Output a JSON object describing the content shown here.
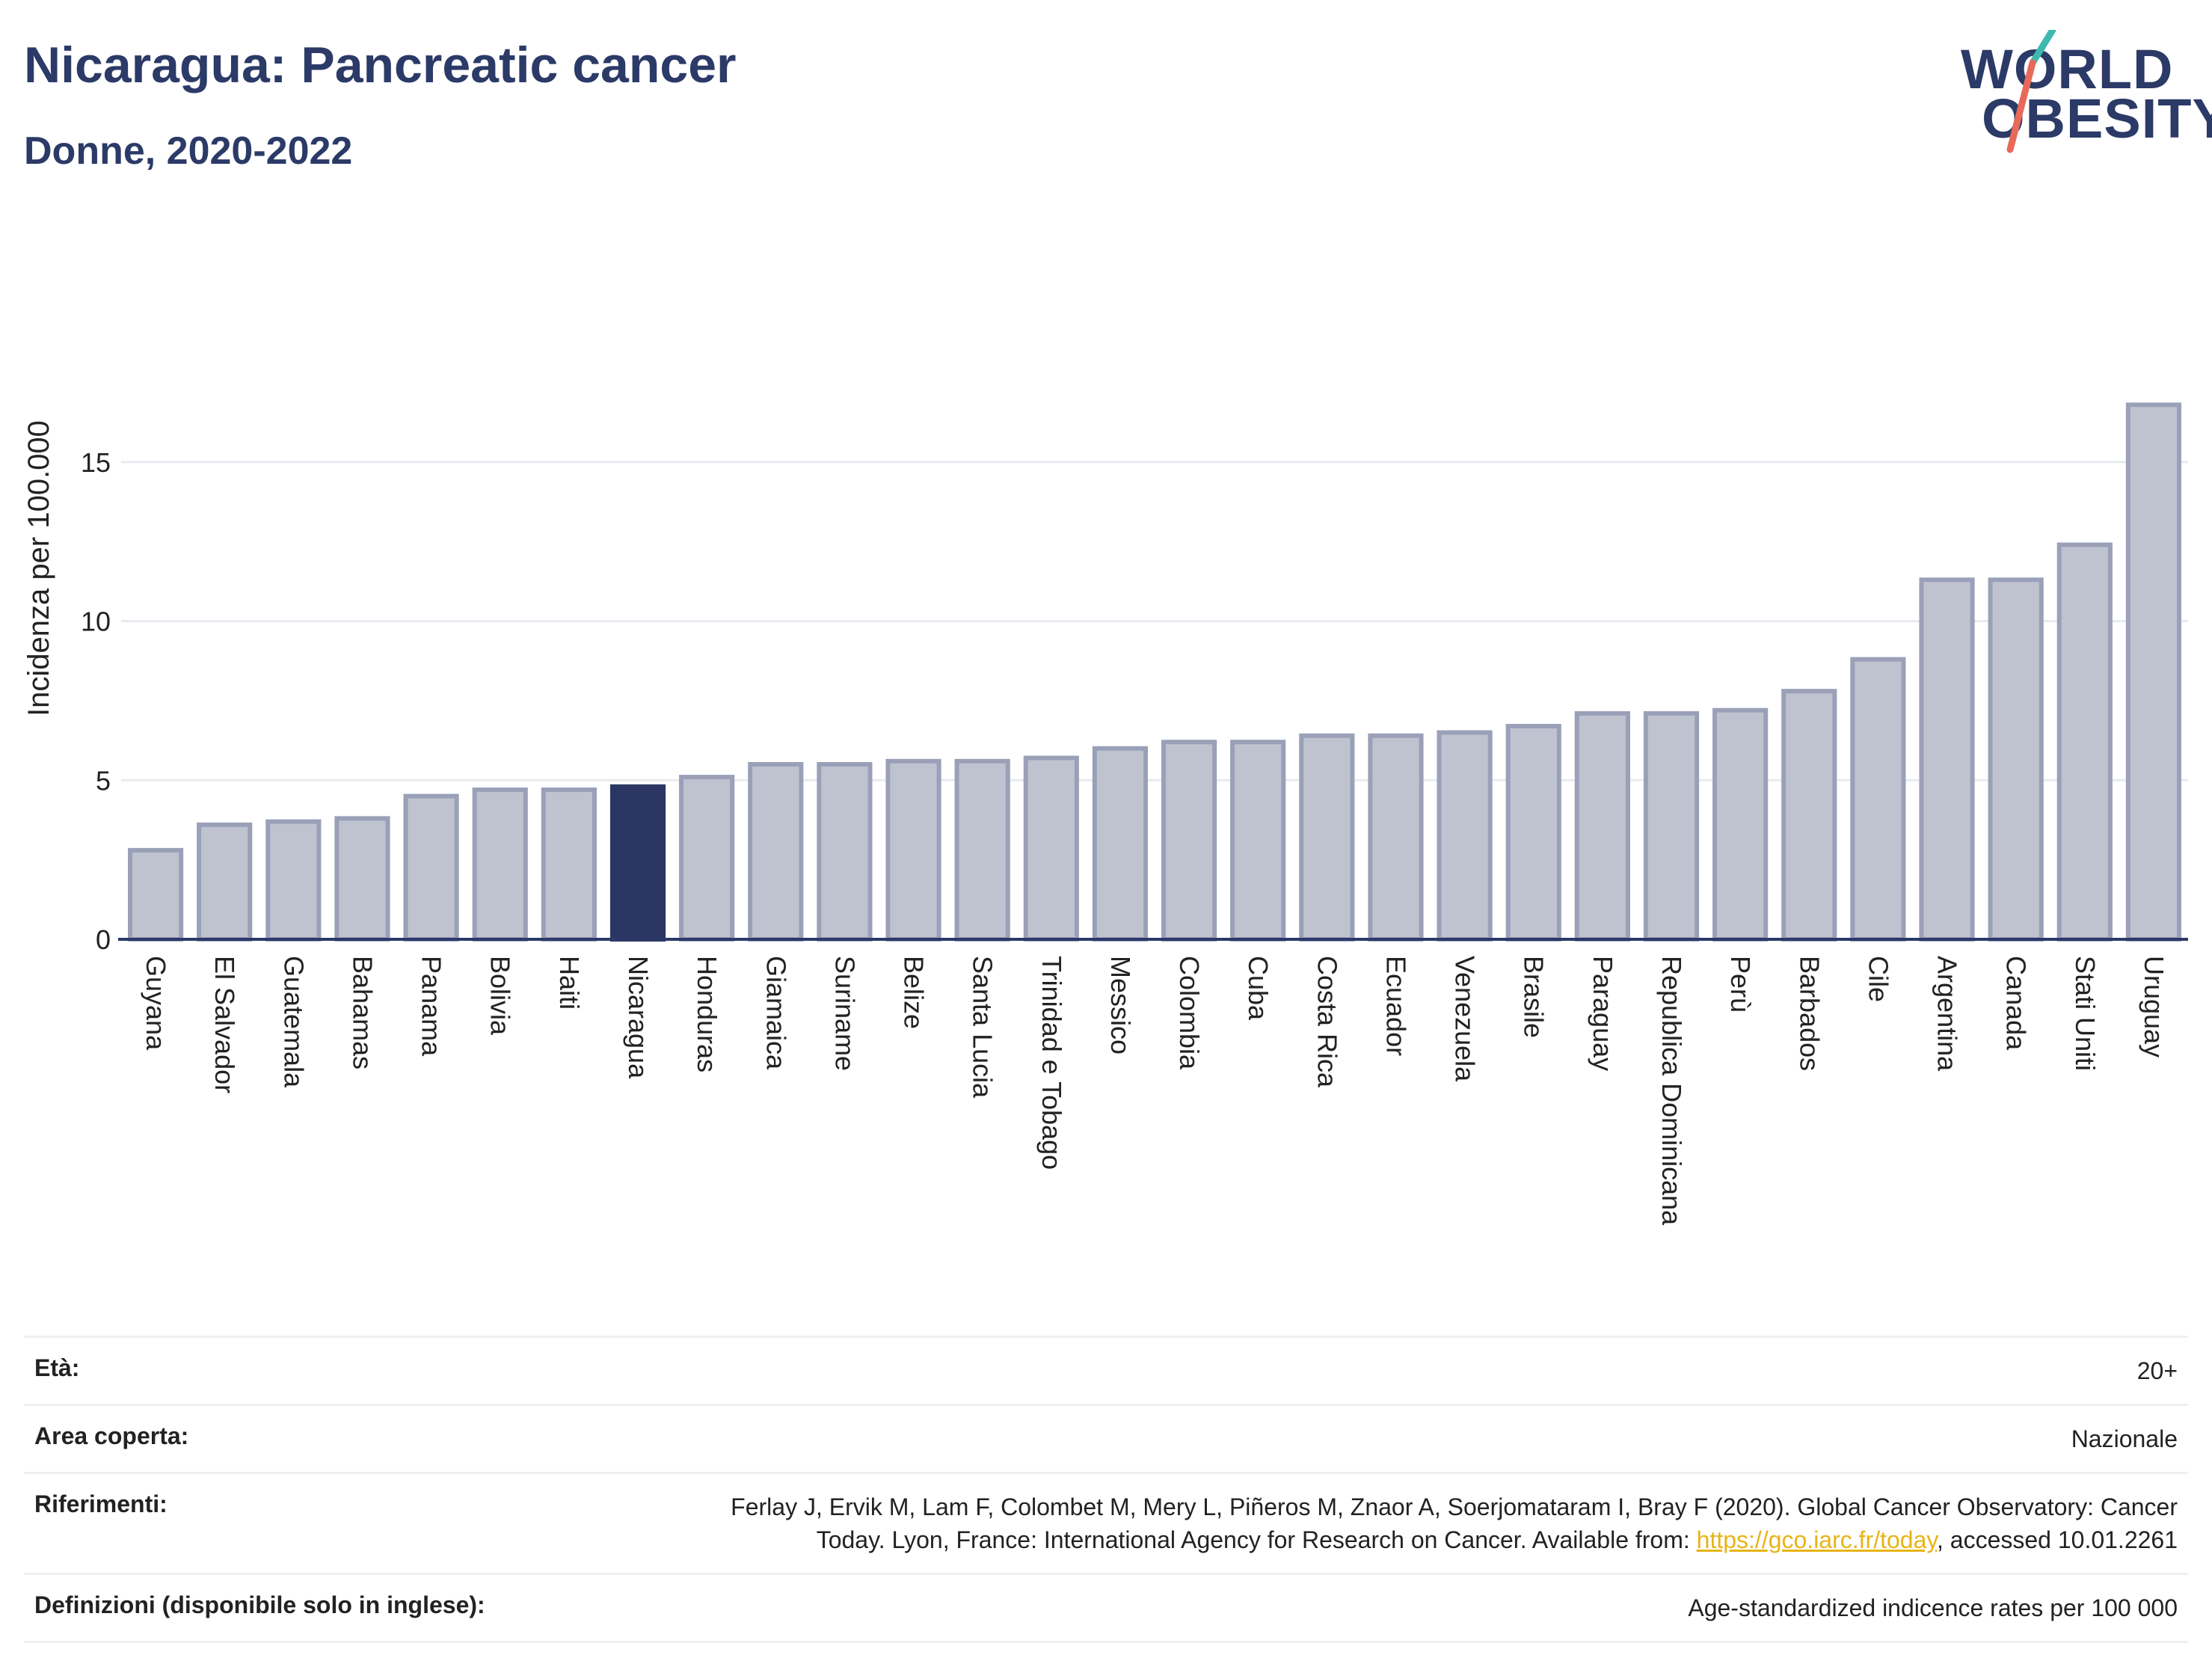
{
  "header": {
    "title": "Nicaragua: Pancreatic cancer",
    "subtitle": "Donne, 2020-2022"
  },
  "logo": {
    "line1": "WORLD",
    "line2": "OBESITY",
    "accent_colors": [
      "#3fb8b0",
      "#e8695a"
    ]
  },
  "colors": {
    "bar": "#bfc3d0",
    "bar_border": "#9aa0b8",
    "highlight": "#2b3663",
    "grid": "#e8eaef",
    "axis": "#2b3a67"
  },
  "chart_data": {
    "type": "bar",
    "ylabel": "Incidenza per 100.000",
    "xlabel": "",
    "ylim": [
      0,
      17.3
    ],
    "yticks": [
      0,
      5,
      10,
      15
    ],
    "highlight": "Nicaragua",
    "categories": [
      "Guyana",
      "El Salvador",
      "Guatemala",
      "Bahamas",
      "Panama",
      "Bolivia",
      "Haiti",
      "Nicaragua",
      "Honduras",
      "Giamaica",
      "Suriname",
      "Belize",
      "Santa Lucia",
      "Trinidad e Tobago",
      "Messico",
      "Colombia",
      "Cuba",
      "Costa Rica",
      "Ecuador",
      "Venezuela",
      "Brasile",
      "Paraguay",
      "Republica Dominicana",
      "Perù",
      "Barbados",
      "Cile",
      "Argentina",
      "Canada",
      "Stati Uniti",
      "Uruguay"
    ],
    "values": [
      2.8,
      3.6,
      3.7,
      3.8,
      4.5,
      4.7,
      4.7,
      4.8,
      5.1,
      5.5,
      5.5,
      5.6,
      5.6,
      5.7,
      6.0,
      6.2,
      6.2,
      6.4,
      6.4,
      6.5,
      6.7,
      7.1,
      7.1,
      7.2,
      7.8,
      8.8,
      11.3,
      11.3,
      12.4,
      16.8
    ]
  },
  "meta": {
    "age_label": "Età:",
    "age_value": "20+",
    "area_label": "Area coperta:",
    "area_value": "Nazionale",
    "ref_label": "Riferimenti:",
    "ref_line1": "Ferlay J, Ervik M, Lam F, Colombet M, Mery L, Piñeros M, Znaor A, Soerjomataram I, Bray F (2020). Global Cancer Observatory: Cancer",
    "ref_line2_pre": "Today. Lyon, France: International Agency for Research on Cancer. Available from: ",
    "ref_link": "https://gco.iarc.fr/today",
    "ref_line2_post": ", accessed 10.01.2261",
    "def_label": "Definizioni (disponibile solo in inglese):",
    "def_value": "Age-standardized indicence rates per 100 000"
  }
}
